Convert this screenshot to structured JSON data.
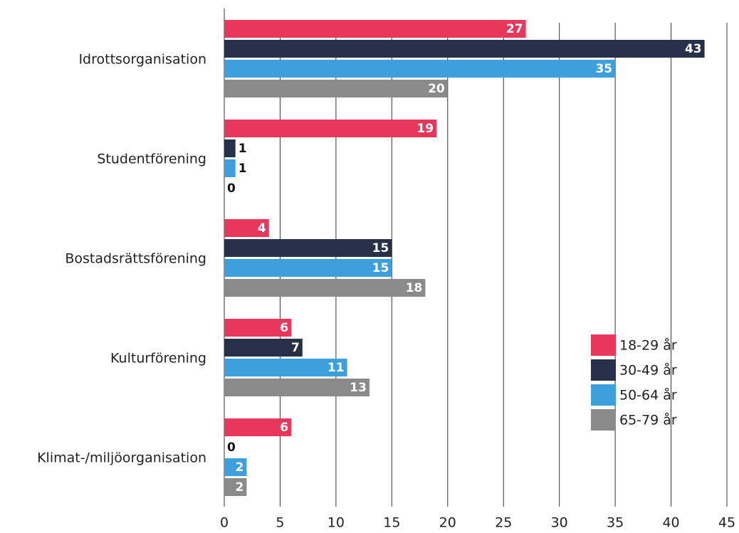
{
  "chart_data": {
    "type": "bar",
    "orientation": "horizontal",
    "categories": [
      "Idrottsorganisation",
      "Studentförening",
      "Bostadsrättsförening",
      "Kulturförening",
      "Klimat-/miljöorganisation"
    ],
    "series": [
      {
        "name": "18-29 år",
        "color": "#e8375a",
        "values": [
          27,
          19,
          4,
          6,
          6
        ]
      },
      {
        "name": "30-49 år",
        "color": "#283047",
        "values": [
          43,
          1,
          15,
          7,
          0
        ]
      },
      {
        "name": "50-64 år",
        "color": "#3d9fdc",
        "values": [
          35,
          1,
          15,
          11,
          2
        ]
      },
      {
        "name": "65-79 år",
        "color": "#8a8a8a",
        "values": [
          20,
          0,
          18,
          13,
          2
        ]
      }
    ],
    "xlim": [
      0,
      45
    ],
    "xticks": [
      0,
      5,
      10,
      15,
      20,
      25,
      30,
      35,
      40,
      45
    ],
    "grid": true,
    "legend": "right"
  }
}
